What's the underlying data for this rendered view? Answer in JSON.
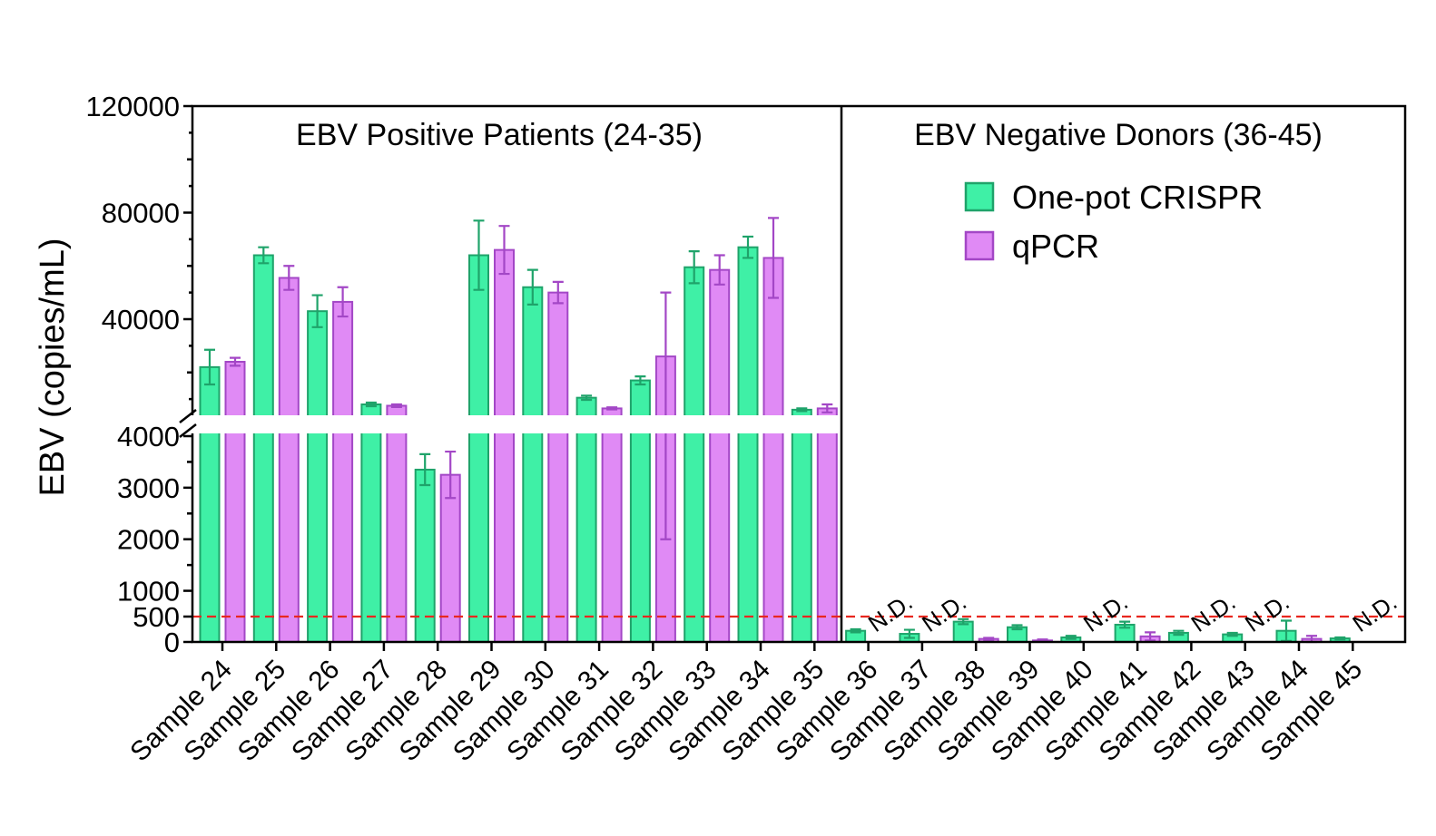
{
  "colors": {
    "crispr_fill": "#3ff0a6",
    "crispr_stroke": "#1fa36a",
    "qpcr_fill": "#e08af5",
    "qpcr_stroke": "#a347c6",
    "threshold": "#e8271f"
  },
  "chart_data": {
    "type": "bar",
    "ylabel": "EBV (copies/mL)",
    "yaxis_lower": {
      "range": [
        0,
        4000
      ],
      "ticks": [
        "0",
        "500",
        "1000",
        "2000",
        "3000",
        "4000"
      ]
    },
    "yaxis_upper": {
      "range": [
        0,
        120000
      ],
      "ticks": [
        "40000",
        "80000",
        "120000"
      ]
    },
    "threshold": 500,
    "group_titles": [
      "EBV Positive Patients (24-35)",
      "EBV Negative Donors (36-45)"
    ],
    "legend": [
      "One-pot CRISPR",
      "qPCR"
    ],
    "not_detected_label": "N.D.",
    "categories": [
      "Sample 24",
      "Sample 25",
      "Sample 26",
      "Sample 27",
      "Sample 28",
      "Sample 29",
      "Sample 30",
      "Sample 31",
      "Sample 32",
      "Sample 33",
      "Sample 34",
      "Sample 35",
      "Sample 36",
      "Sample 37",
      "Sample 38",
      "Sample 39",
      "Sample 40",
      "Sample 41",
      "Sample 42",
      "Sample 43",
      "Sample 44",
      "Sample 45"
    ],
    "series": [
      {
        "name": "One-pot CRISPR",
        "values": [
          22000,
          64000,
          43000,
          8000,
          3350,
          64000,
          52000,
          10500,
          17000,
          59500,
          67000,
          6000,
          220,
          160,
          400,
          290,
          90,
          340,
          180,
          150,
          220,
          70
        ],
        "errors": [
          6500,
          3000,
          6000,
          700,
          300,
          13000,
          6500,
          800,
          1500,
          6000,
          4000,
          500,
          30,
          80,
          50,
          40,
          30,
          60,
          40,
          30,
          200,
          20
        ]
      },
      {
        "name": "qPCR",
        "values": [
          24000,
          55500,
          46500,
          7500,
          3250,
          66000,
          50000,
          6500,
          26000,
          58500,
          63000,
          6500,
          null,
          null,
          60,
          30,
          null,
          110,
          null,
          null,
          60,
          null
        ],
        "errors": [
          1500,
          4500,
          5500,
          500,
          450,
          9000,
          4000,
          400,
          24000,
          5500,
          15000,
          1500,
          null,
          null,
          20,
          20,
          null,
          80,
          null,
          null,
          60,
          null
        ]
      }
    ]
  }
}
